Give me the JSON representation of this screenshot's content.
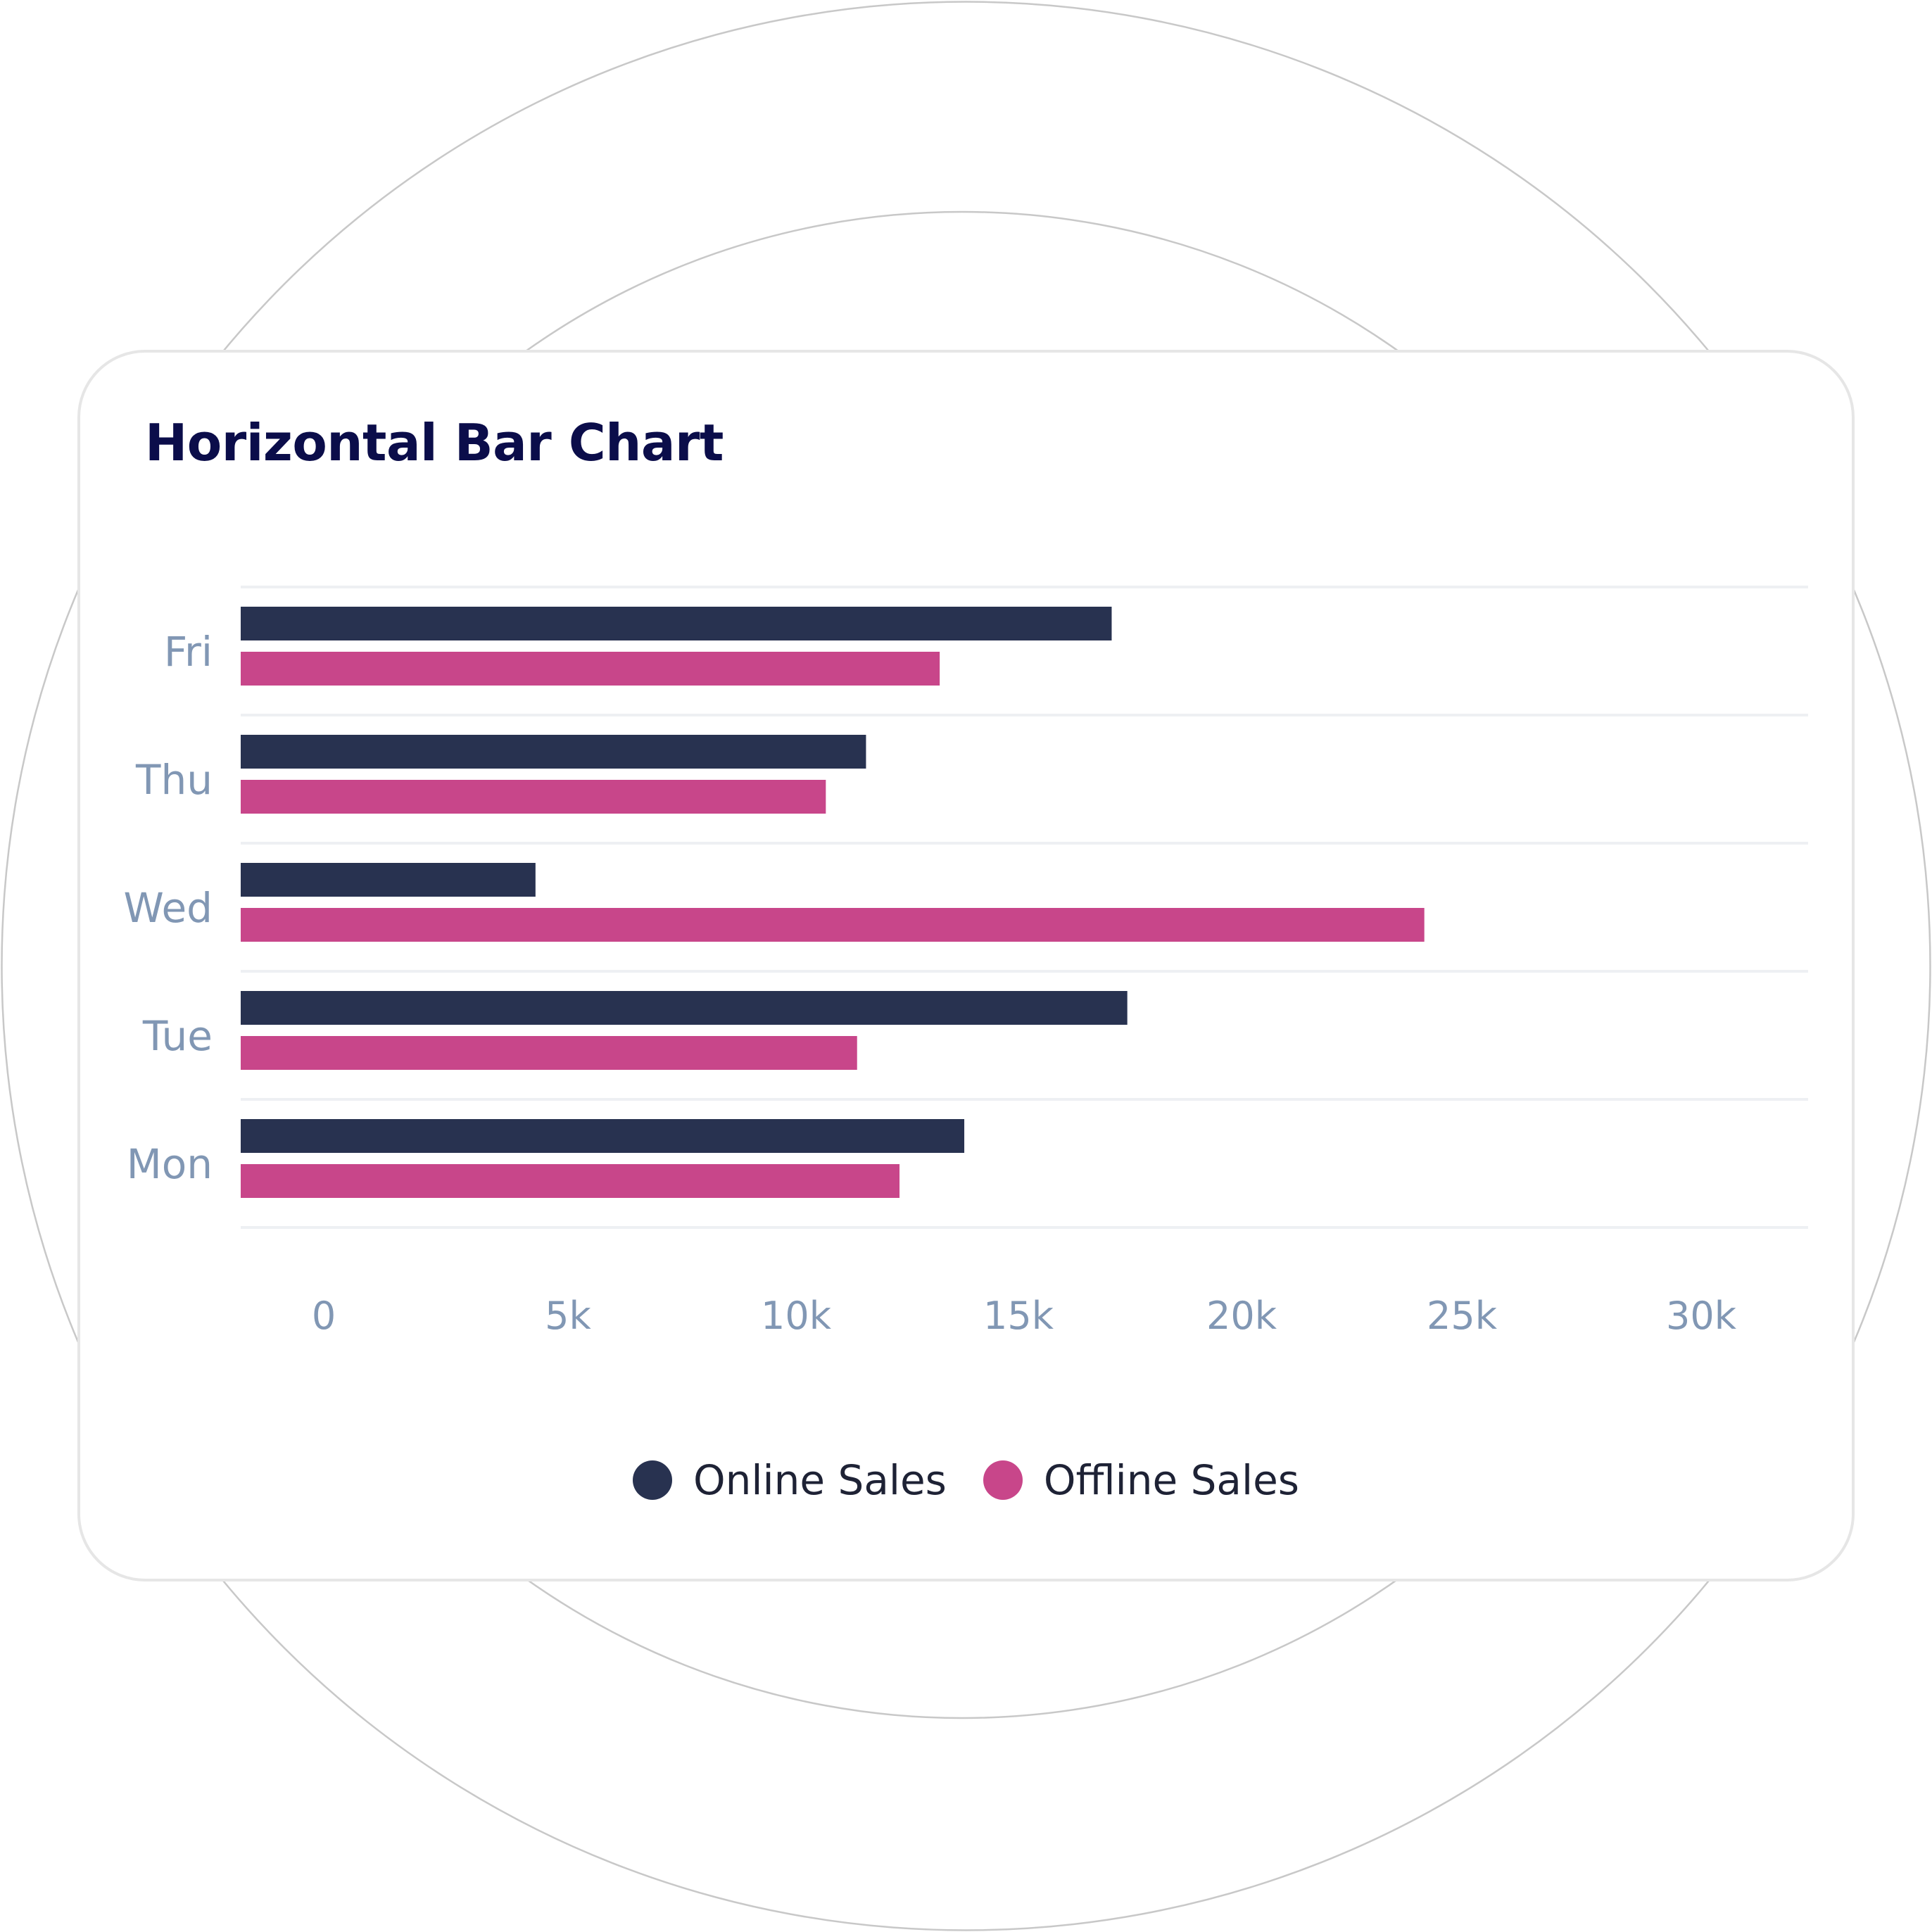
{
  "colors": {
    "online": "#283250",
    "offline": "#c8468a",
    "tick_label": "#8197b4",
    "gridline": "#eef0f3",
    "title": "#0b0d4a",
    "legend_text": "#1e2235",
    "card_border": "#e6e6e6",
    "background_circles": "#c8c8c8"
  },
  "chart_data": {
    "type": "bar",
    "orientation": "horizontal",
    "title": "Horizontal Bar Chart",
    "categories": [
      "Fri",
      "Thu",
      "Wed",
      "Tue",
      "Mon"
    ],
    "series": [
      {
        "name": "Online Sales",
        "values": [
          19500,
          14000,
          6600,
          19850,
          16200
        ]
      },
      {
        "name": "Offline Sales",
        "values": [
          15650,
          13100,
          26500,
          13800,
          14750
        ]
      }
    ],
    "x_tick_labels": [
      "0",
      "5k",
      "10k",
      "15k",
      "20k",
      "25k",
      "30k"
    ],
    "xlim": [
      0,
      30000
    ],
    "grid": "horizontal-separators",
    "legend_position": "bottom-center"
  }
}
